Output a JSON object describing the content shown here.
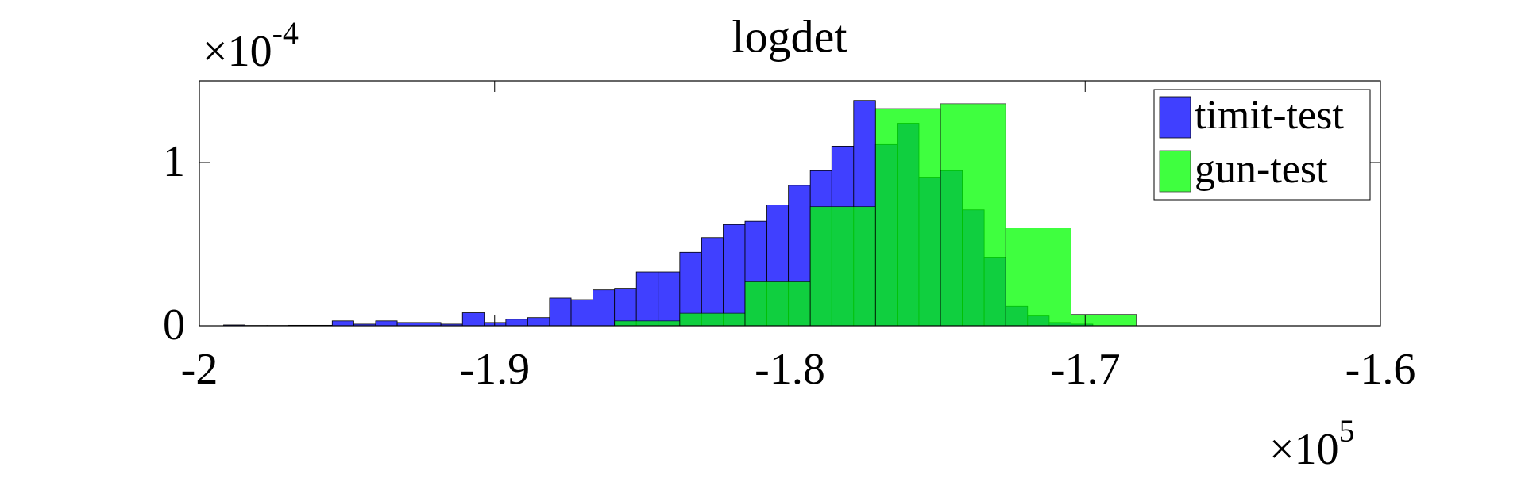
{
  "chart_data": {
    "type": "histogram",
    "title": "logdet",
    "y_multiplier": {
      "base": "×10",
      "exponent": "-4"
    },
    "x_multiplier": {
      "base": "×10",
      "exponent": "5"
    },
    "xlim": [
      -2,
      -1.6
    ],
    "xticks": [
      -2,
      -1.9,
      -1.8,
      -1.7,
      -1.6
    ],
    "ylim": [
      0,
      1.5
    ],
    "yticks": [
      0,
      1
    ],
    "legend": "upper right",
    "series": [
      {
        "name": "timit-test",
        "color": "#4040ff",
        "bins": [
          -1.9992,
          -1.9918,
          -1.9845,
          -1.9771,
          -1.9698,
          -1.9624,
          -1.955,
          -1.9477,
          -1.9403,
          -1.933,
          -1.9256,
          -1.9182,
          -1.9109,
          -1.9035,
          -1.8962,
          -1.8888,
          -1.8814,
          -1.8741,
          -1.8667,
          -1.8594,
          -1.852,
          -1.8446,
          -1.8373,
          -1.8299,
          -1.8226,
          -1.8152,
          -1.8078,
          -1.8005,
          -1.7931,
          -1.7858,
          -1.7784,
          -1.771,
          -1.7637,
          -1.7563,
          -1.749,
          -1.7416,
          -1.7342,
          -1.7269,
          -1.7195,
          -1.7122,
          -1.7048,
          -1.6974
        ],
        "values": [
          0,
          0.005,
          0.002,
          0.002,
          0.003,
          0.003,
          0.03,
          0.01,
          0.03,
          0.02,
          0.02,
          0.01,
          0.08,
          0.02,
          0.04,
          0.05,
          0.17,
          0.16,
          0.22,
          0.23,
          0.33,
          0.33,
          0.45,
          0.54,
          0.62,
          0.64,
          0.74,
          0.86,
          0.95,
          1.1,
          1.38,
          1.11,
          1.24,
          0.91,
          0.95,
          0.71,
          0.42,
          0.12,
          0.06,
          0.02,
          0.01
        ]
      },
      {
        "name": "gun-test",
        "color": "#00ff00",
        "bins": [
          -1.8594,
          -1.8373,
          -1.8152,
          -1.7931,
          -1.771,
          -1.749,
          -1.7269,
          -1.7048,
          -1.6827
        ],
        "values": [
          0.03,
          0.077,
          0.27,
          0.73,
          1.33,
          1.36,
          0.6,
          0.07
        ]
      }
    ]
  }
}
